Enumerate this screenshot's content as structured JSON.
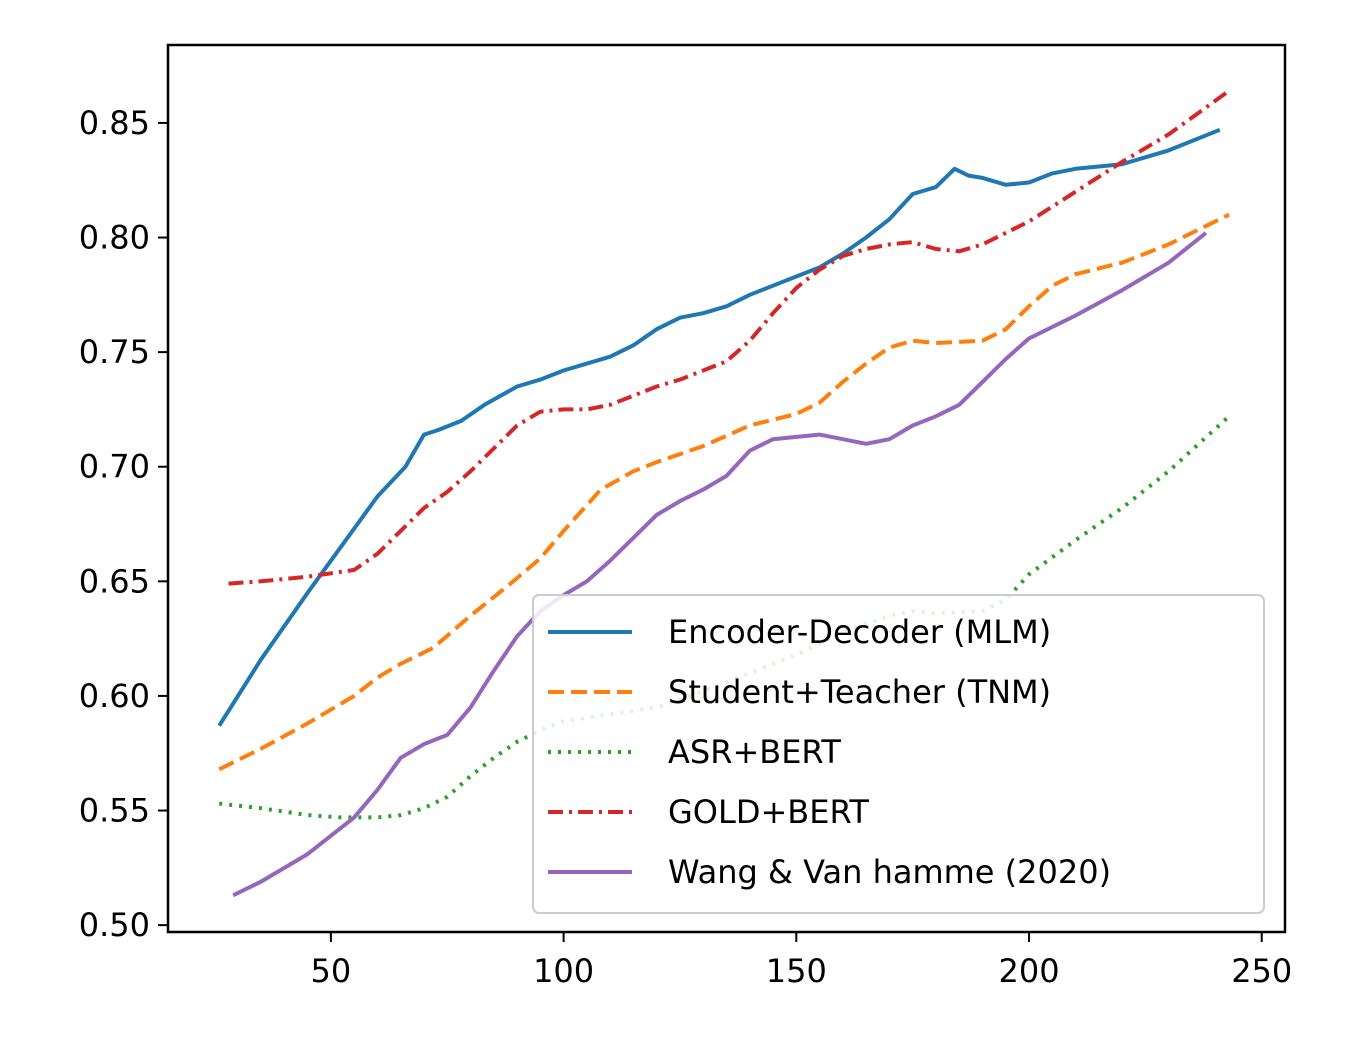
{
  "chart_data": {
    "type": "line",
    "title": "",
    "xlabel": "",
    "ylabel": "",
    "xlim": [
      15,
      255
    ],
    "ylim": [
      0.497,
      0.884
    ],
    "xticks": [
      50,
      100,
      150,
      200,
      250
    ],
    "yticks": [
      0.5,
      0.55,
      0.6,
      0.65,
      0.7,
      0.75,
      0.8,
      0.85
    ],
    "xtick_labels": [
      "50",
      "100",
      "150",
      "200",
      "250"
    ],
    "ytick_labels": [
      "0.50",
      "0.55",
      "0.60",
      "0.65",
      "0.70",
      "0.75",
      "0.80",
      "0.85"
    ],
    "grid": false,
    "legend_position": "lower-right",
    "series": [
      {
        "name": "Encoder-Decoder (MLM)",
        "color": "#1f77b4",
        "style": "solid",
        "points": [
          [
            26,
            0.587
          ],
          [
            35,
            0.616
          ],
          [
            45,
            0.645
          ],
          [
            55,
            0.673
          ],
          [
            60,
            0.687
          ],
          [
            66,
            0.7
          ],
          [
            70,
            0.714
          ],
          [
            73,
            0.716
          ],
          [
            78,
            0.72
          ],
          [
            83,
            0.727
          ],
          [
            90,
            0.735
          ],
          [
            95,
            0.738
          ],
          [
            100,
            0.742
          ],
          [
            105,
            0.745
          ],
          [
            110,
            0.748
          ],
          [
            115,
            0.753
          ],
          [
            120,
            0.76
          ],
          [
            125,
            0.765
          ],
          [
            130,
            0.767
          ],
          [
            135,
            0.77
          ],
          [
            140,
            0.775
          ],
          [
            145,
            0.779
          ],
          [
            150,
            0.783
          ],
          [
            155,
            0.787
          ],
          [
            160,
            0.793
          ],
          [
            165,
            0.8
          ],
          [
            170,
            0.808
          ],
          [
            175,
            0.819
          ],
          [
            180,
            0.822
          ],
          [
            184,
            0.83
          ],
          [
            187,
            0.827
          ],
          [
            190,
            0.826
          ],
          [
            195,
            0.823
          ],
          [
            200,
            0.824
          ],
          [
            205,
            0.828
          ],
          [
            210,
            0.83
          ],
          [
            220,
            0.832
          ],
          [
            230,
            0.838
          ],
          [
            241,
            0.847
          ]
        ]
      },
      {
        "name": "Student+Teacher (TNM)",
        "color": "#ff7f0e",
        "style": "dashed",
        "points": [
          [
            26,
            0.568
          ],
          [
            35,
            0.577
          ],
          [
            45,
            0.588
          ],
          [
            55,
            0.6
          ],
          [
            60,
            0.608
          ],
          [
            65,
            0.614
          ],
          [
            72,
            0.621
          ],
          [
            80,
            0.635
          ],
          [
            88,
            0.648
          ],
          [
            95,
            0.66
          ],
          [
            100,
            0.672
          ],
          [
            108,
            0.69
          ],
          [
            115,
            0.698
          ],
          [
            120,
            0.702
          ],
          [
            130,
            0.709
          ],
          [
            140,
            0.718
          ],
          [
            150,
            0.723
          ],
          [
            155,
            0.728
          ],
          [
            160,
            0.737
          ],
          [
            165,
            0.745
          ],
          [
            170,
            0.752
          ],
          [
            175,
            0.755
          ],
          [
            180,
            0.754
          ],
          [
            190,
            0.755
          ],
          [
            195,
            0.76
          ],
          [
            200,
            0.77
          ],
          [
            205,
            0.779
          ],
          [
            210,
            0.784
          ],
          [
            220,
            0.789
          ],
          [
            230,
            0.797
          ],
          [
            243,
            0.81
          ]
        ]
      },
      {
        "name": "ASR+BERT",
        "color": "#2ca02c",
        "style": "dotted",
        "points": [
          [
            26,
            0.553
          ],
          [
            35,
            0.551
          ],
          [
            45,
            0.548
          ],
          [
            52,
            0.547
          ],
          [
            60,
            0.547
          ],
          [
            65,
            0.548
          ],
          [
            70,
            0.551
          ],
          [
            75,
            0.556
          ],
          [
            80,
            0.565
          ],
          [
            85,
            0.573
          ],
          [
            90,
            0.58
          ],
          [
            95,
            0.585
          ],
          [
            100,
            0.589
          ],
          [
            110,
            0.592
          ],
          [
            120,
            0.595
          ],
          [
            130,
            0.602
          ],
          [
            140,
            0.61
          ],
          [
            150,
            0.618
          ],
          [
            160,
            0.628
          ],
          [
            170,
            0.635
          ],
          [
            175,
            0.637
          ],
          [
            180,
            0.636
          ],
          [
            190,
            0.637
          ],
          [
            195,
            0.642
          ],
          [
            200,
            0.653
          ],
          [
            210,
            0.668
          ],
          [
            220,
            0.682
          ],
          [
            230,
            0.698
          ],
          [
            243,
            0.722
          ]
        ]
      },
      {
        "name": "GOLD+BERT",
        "color": "#d62728",
        "style": "dashdot",
        "points": [
          [
            28,
            0.649
          ],
          [
            35,
            0.65
          ],
          [
            45,
            0.652
          ],
          [
            55,
            0.655
          ],
          [
            60,
            0.662
          ],
          [
            65,
            0.672
          ],
          [
            70,
            0.682
          ],
          [
            75,
            0.689
          ],
          [
            80,
            0.698
          ],
          [
            85,
            0.708
          ],
          [
            90,
            0.718
          ],
          [
            95,
            0.724
          ],
          [
            100,
            0.725
          ],
          [
            105,
            0.725
          ],
          [
            110,
            0.727
          ],
          [
            115,
            0.731
          ],
          [
            120,
            0.735
          ],
          [
            125,
            0.738
          ],
          [
            130,
            0.742
          ],
          [
            135,
            0.746
          ],
          [
            140,
            0.755
          ],
          [
            145,
            0.767
          ],
          [
            150,
            0.778
          ],
          [
            155,
            0.786
          ],
          [
            160,
            0.792
          ],
          [
            165,
            0.795
          ],
          [
            170,
            0.797
          ],
          [
            175,
            0.798
          ],
          [
            180,
            0.795
          ],
          [
            185,
            0.794
          ],
          [
            190,
            0.797
          ],
          [
            200,
            0.807
          ],
          [
            210,
            0.82
          ],
          [
            220,
            0.833
          ],
          [
            230,
            0.845
          ],
          [
            243,
            0.864
          ]
        ]
      },
      {
        "name": "Wang & Van hamme (2020)",
        "color": "#9467bd",
        "style": "solid",
        "points": [
          [
            29,
            0.513
          ],
          [
            35,
            0.519
          ],
          [
            45,
            0.531
          ],
          [
            55,
            0.547
          ],
          [
            60,
            0.559
          ],
          [
            65,
            0.573
          ],
          [
            70,
            0.579
          ],
          [
            75,
            0.583
          ],
          [
            80,
            0.595
          ],
          [
            85,
            0.611
          ],
          [
            90,
            0.626
          ],
          [
            95,
            0.637
          ],
          [
            100,
            0.644
          ],
          [
            105,
            0.65
          ],
          [
            110,
            0.659
          ],
          [
            115,
            0.669
          ],
          [
            120,
            0.679
          ],
          [
            125,
            0.685
          ],
          [
            130,
            0.69
          ],
          [
            135,
            0.696
          ],
          [
            140,
            0.707
          ],
          [
            145,
            0.712
          ],
          [
            150,
            0.713
          ],
          [
            155,
            0.714
          ],
          [
            160,
            0.712
          ],
          [
            165,
            0.71
          ],
          [
            170,
            0.712
          ],
          [
            175,
            0.718
          ],
          [
            180,
            0.722
          ],
          [
            185,
            0.727
          ],
          [
            190,
            0.737
          ],
          [
            195,
            0.747
          ],
          [
            200,
            0.756
          ],
          [
            210,
            0.766
          ],
          [
            220,
            0.777
          ],
          [
            230,
            0.789
          ],
          [
            238,
            0.802
          ]
        ]
      }
    ]
  }
}
